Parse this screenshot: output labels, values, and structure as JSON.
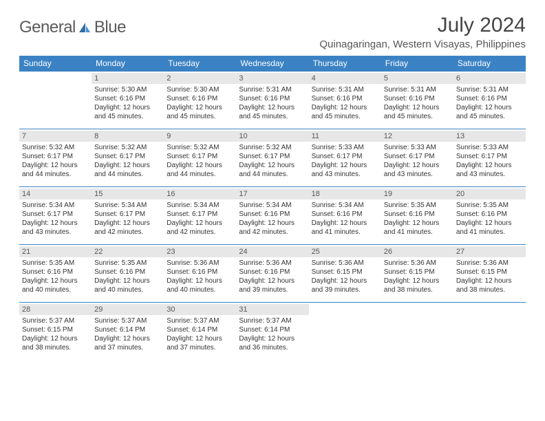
{
  "logo": {
    "text_gray": "General",
    "text_blue": "Blue"
  },
  "title": "July 2024",
  "location": "Quinagaringan, Western Visayas, Philippines",
  "colors": {
    "header_bg": "#3b82c4",
    "header_text": "#ffffff",
    "daynum_bg": "#e7e7e7",
    "border": "#3b82c4",
    "logo_gray": "#5a5a5a",
    "logo_blue": "#3b82c4"
  },
  "weekdays": [
    "Sunday",
    "Monday",
    "Tuesday",
    "Wednesday",
    "Thursday",
    "Friday",
    "Saturday"
  ],
  "weeks": [
    [
      {
        "day": "",
        "sunrise": "",
        "sunset": "",
        "daylight": ""
      },
      {
        "day": "1",
        "sunrise": "Sunrise: 5:30 AM",
        "sunset": "Sunset: 6:16 PM",
        "daylight": "Daylight: 12 hours and 45 minutes."
      },
      {
        "day": "2",
        "sunrise": "Sunrise: 5:30 AM",
        "sunset": "Sunset: 6:16 PM",
        "daylight": "Daylight: 12 hours and 45 minutes."
      },
      {
        "day": "3",
        "sunrise": "Sunrise: 5:31 AM",
        "sunset": "Sunset: 6:16 PM",
        "daylight": "Daylight: 12 hours and 45 minutes."
      },
      {
        "day": "4",
        "sunrise": "Sunrise: 5:31 AM",
        "sunset": "Sunset: 6:16 PM",
        "daylight": "Daylight: 12 hours and 45 minutes."
      },
      {
        "day": "5",
        "sunrise": "Sunrise: 5:31 AM",
        "sunset": "Sunset: 6:16 PM",
        "daylight": "Daylight: 12 hours and 45 minutes."
      },
      {
        "day": "6",
        "sunrise": "Sunrise: 5:31 AM",
        "sunset": "Sunset: 6:16 PM",
        "daylight": "Daylight: 12 hours and 45 minutes."
      }
    ],
    [
      {
        "day": "7",
        "sunrise": "Sunrise: 5:32 AM",
        "sunset": "Sunset: 6:17 PM",
        "daylight": "Daylight: 12 hours and 44 minutes."
      },
      {
        "day": "8",
        "sunrise": "Sunrise: 5:32 AM",
        "sunset": "Sunset: 6:17 PM",
        "daylight": "Daylight: 12 hours and 44 minutes."
      },
      {
        "day": "9",
        "sunrise": "Sunrise: 5:32 AM",
        "sunset": "Sunset: 6:17 PM",
        "daylight": "Daylight: 12 hours and 44 minutes."
      },
      {
        "day": "10",
        "sunrise": "Sunrise: 5:32 AM",
        "sunset": "Sunset: 6:17 PM",
        "daylight": "Daylight: 12 hours and 44 minutes."
      },
      {
        "day": "11",
        "sunrise": "Sunrise: 5:33 AM",
        "sunset": "Sunset: 6:17 PM",
        "daylight": "Daylight: 12 hours and 43 minutes."
      },
      {
        "day": "12",
        "sunrise": "Sunrise: 5:33 AM",
        "sunset": "Sunset: 6:17 PM",
        "daylight": "Daylight: 12 hours and 43 minutes."
      },
      {
        "day": "13",
        "sunrise": "Sunrise: 5:33 AM",
        "sunset": "Sunset: 6:17 PM",
        "daylight": "Daylight: 12 hours and 43 minutes."
      }
    ],
    [
      {
        "day": "14",
        "sunrise": "Sunrise: 5:34 AM",
        "sunset": "Sunset: 6:17 PM",
        "daylight": "Daylight: 12 hours and 43 minutes."
      },
      {
        "day": "15",
        "sunrise": "Sunrise: 5:34 AM",
        "sunset": "Sunset: 6:17 PM",
        "daylight": "Daylight: 12 hours and 42 minutes."
      },
      {
        "day": "16",
        "sunrise": "Sunrise: 5:34 AM",
        "sunset": "Sunset: 6:17 PM",
        "daylight": "Daylight: 12 hours and 42 minutes."
      },
      {
        "day": "17",
        "sunrise": "Sunrise: 5:34 AM",
        "sunset": "Sunset: 6:16 PM",
        "daylight": "Daylight: 12 hours and 42 minutes."
      },
      {
        "day": "18",
        "sunrise": "Sunrise: 5:34 AM",
        "sunset": "Sunset: 6:16 PM",
        "daylight": "Daylight: 12 hours and 41 minutes."
      },
      {
        "day": "19",
        "sunrise": "Sunrise: 5:35 AM",
        "sunset": "Sunset: 6:16 PM",
        "daylight": "Daylight: 12 hours and 41 minutes."
      },
      {
        "day": "20",
        "sunrise": "Sunrise: 5:35 AM",
        "sunset": "Sunset: 6:16 PM",
        "daylight": "Daylight: 12 hours and 41 minutes."
      }
    ],
    [
      {
        "day": "21",
        "sunrise": "Sunrise: 5:35 AM",
        "sunset": "Sunset: 6:16 PM",
        "daylight": "Daylight: 12 hours and 40 minutes."
      },
      {
        "day": "22",
        "sunrise": "Sunrise: 5:35 AM",
        "sunset": "Sunset: 6:16 PM",
        "daylight": "Daylight: 12 hours and 40 minutes."
      },
      {
        "day": "23",
        "sunrise": "Sunrise: 5:36 AM",
        "sunset": "Sunset: 6:16 PM",
        "daylight": "Daylight: 12 hours and 40 minutes."
      },
      {
        "day": "24",
        "sunrise": "Sunrise: 5:36 AM",
        "sunset": "Sunset: 6:16 PM",
        "daylight": "Daylight: 12 hours and 39 minutes."
      },
      {
        "day": "25",
        "sunrise": "Sunrise: 5:36 AM",
        "sunset": "Sunset: 6:15 PM",
        "daylight": "Daylight: 12 hours and 39 minutes."
      },
      {
        "day": "26",
        "sunrise": "Sunrise: 5:36 AM",
        "sunset": "Sunset: 6:15 PM",
        "daylight": "Daylight: 12 hours and 38 minutes."
      },
      {
        "day": "27",
        "sunrise": "Sunrise: 5:36 AM",
        "sunset": "Sunset: 6:15 PM",
        "daylight": "Daylight: 12 hours and 38 minutes."
      }
    ],
    [
      {
        "day": "28",
        "sunrise": "Sunrise: 5:37 AM",
        "sunset": "Sunset: 6:15 PM",
        "daylight": "Daylight: 12 hours and 38 minutes."
      },
      {
        "day": "29",
        "sunrise": "Sunrise: 5:37 AM",
        "sunset": "Sunset: 6:14 PM",
        "daylight": "Daylight: 12 hours and 37 minutes."
      },
      {
        "day": "30",
        "sunrise": "Sunrise: 5:37 AM",
        "sunset": "Sunset: 6:14 PM",
        "daylight": "Daylight: 12 hours and 37 minutes."
      },
      {
        "day": "31",
        "sunrise": "Sunrise: 5:37 AM",
        "sunset": "Sunset: 6:14 PM",
        "daylight": "Daylight: 12 hours and 36 minutes."
      },
      {
        "day": "",
        "sunrise": "",
        "sunset": "",
        "daylight": ""
      },
      {
        "day": "",
        "sunrise": "",
        "sunset": "",
        "daylight": ""
      },
      {
        "day": "",
        "sunrise": "",
        "sunset": "",
        "daylight": ""
      }
    ]
  ]
}
